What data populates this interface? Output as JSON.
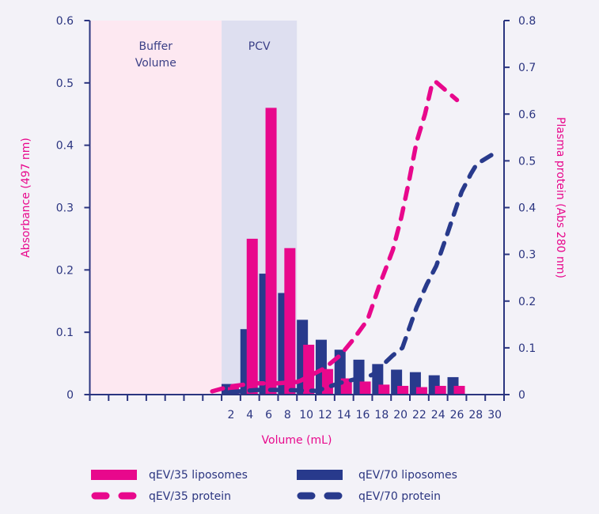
{
  "chart_data": {
    "type": "bar+line",
    "title": "",
    "xlabel": "Volume (mL)",
    "ylabel_left": "Absorbance (497 nm)",
    "ylabel_right": "Plasma protein (Abs 280 nm)",
    "xlim": [
      -13,
      31
    ],
    "x_tick_labels": [
      "2",
      "4",
      "6",
      "8",
      "10",
      "12",
      "14",
      "16",
      "18",
      "20",
      "22",
      "24",
      "26",
      "28",
      "30"
    ],
    "ylim_left": [
      0,
      0.6
    ],
    "ylim_right": [
      0,
      0.8
    ],
    "y_ticks_left": [
      "0",
      "0.1",
      "0.2",
      "0.3",
      "0.4",
      "0.5",
      "0.6"
    ],
    "y_ticks_right": [
      "0",
      "0.1",
      "0.2",
      "0.3",
      "0.4",
      "0.5",
      "0.6",
      "0.7",
      "0.8"
    ],
    "regions": [
      {
        "label_lines": [
          "Buffer",
          "Volume"
        ],
        "x": [
          -13,
          1
        ],
        "color": "#fde8f1"
      },
      {
        "label_lines": [
          "PCV"
        ],
        "x": [
          1,
          9
        ],
        "color": "#dedff0"
      }
    ],
    "bar_x": [
      2,
      4,
      6,
      8,
      10,
      12,
      14,
      16,
      18,
      20,
      22,
      24,
      26
    ],
    "bar_series": [
      {
        "name": "qEV/70 liposomes",
        "axis": "left",
        "color": "#283a8c",
        "values": [
          0.017,
          0.105,
          0.194,
          0.163,
          0.12,
          0.088,
          0.072,
          0.056,
          0.049,
          0.04,
          0.036,
          0.031,
          0.028
        ]
      },
      {
        "name": "qEV/35 liposomes",
        "axis": "left",
        "color": "#e8088c",
        "values": [
          0.012,
          0.25,
          0.46,
          0.235,
          0.08,
          0.041,
          0.026,
          0.021,
          0.016,
          0.014,
          0.012,
          0.014,
          0.014
        ]
      }
    ],
    "line_series": [
      {
        "name": "qEV/35 protein",
        "axis": "right",
        "color": "#e8088c",
        "style": "dashed",
        "points": [
          [
            0,
            0.007
          ],
          [
            1.8,
            0.017
          ],
          [
            4.4,
            0.024
          ],
          [
            6.9,
            0.024
          ],
          [
            9,
            0.027
          ],
          [
            9.4,
            0.03
          ],
          [
            11.9,
            0.056
          ],
          [
            13.6,
            0.084
          ],
          [
            15,
            0.118
          ],
          [
            16.5,
            0.16
          ],
          [
            17.8,
            0.236
          ],
          [
            19.2,
            0.31
          ],
          [
            20.1,
            0.38
          ],
          [
            20.9,
            0.456
          ],
          [
            21.7,
            0.54
          ],
          [
            22.6,
            0.6
          ],
          [
            23.3,
            0.66
          ],
          [
            23.7,
            0.67
          ],
          [
            26,
            0.63
          ]
        ]
      },
      {
        "name": "qEV/70 protein",
        "axis": "right",
        "color": "#283a8c",
        "style": "dashed",
        "points": [
          [
            1.8,
            0.005
          ],
          [
            4.8,
            0.01
          ],
          [
            7.3,
            0.01
          ],
          [
            11.1,
            0.008
          ],
          [
            13.6,
            0.025
          ],
          [
            17,
            0.042
          ],
          [
            19.2,
            0.084
          ],
          [
            20.2,
            0.1
          ],
          [
            20.9,
            0.14
          ],
          [
            21.7,
            0.186
          ],
          [
            22.8,
            0.236
          ],
          [
            23.8,
            0.275
          ],
          [
            24.8,
            0.333
          ],
          [
            26,
            0.405
          ],
          [
            26.5,
            0.434
          ],
          [
            27.5,
            0.473
          ],
          [
            28.1,
            0.493
          ],
          [
            30.2,
            0.519
          ]
        ]
      }
    ],
    "legend": {
      "placement": "bottom",
      "entries": [
        {
          "label": "qEV/35 liposomes",
          "kind": "bar",
          "color": "#e8088c"
        },
        {
          "label": "qEV/70 liposomes",
          "kind": "bar",
          "color": "#283a8c"
        },
        {
          "label": "qEV/35 protein",
          "kind": "dash",
          "color": "#e8088c"
        },
        {
          "label": "qEV/70 protein",
          "kind": "dash",
          "color": "#283a8c"
        }
      ]
    },
    "axis_color": "#2b3580",
    "grid": false
  }
}
